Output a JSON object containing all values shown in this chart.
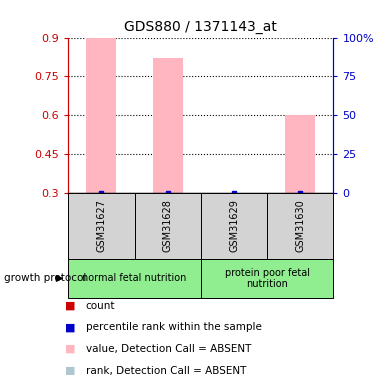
{
  "title": "GDS880 / 1371143_at",
  "samples": [
    "GSM31627",
    "GSM31628",
    "GSM31629",
    "GSM31630"
  ],
  "pink_bar_values": [
    0.9,
    0.82,
    null,
    0.6
  ],
  "blue_dot_values": [
    0.3,
    0.3,
    0.3,
    0.3
  ],
  "ylim": [
    0.3,
    0.9
  ],
  "yticks_left": [
    0.3,
    0.45,
    0.6,
    0.75,
    0.9
  ],
  "yticks_right": [
    0,
    25,
    50,
    75,
    100
  ],
  "yticks_right_labels": [
    "0",
    "25",
    "50",
    "75",
    "100%"
  ],
  "ybaseline": 0.3,
  "groups": [
    {
      "label": "normal fetal nutrition",
      "span": [
        0,
        1
      ],
      "color": "#90EE90"
    },
    {
      "label": "protein poor fetal\nnutrition",
      "span": [
        2,
        3
      ],
      "color": "#90EE90"
    }
  ],
  "group_protocol_label": "growth protocol",
  "sample_box_color": "#d3d3d3",
  "left_axis_color": "#cc0000",
  "right_axis_color": "#0000cc",
  "pink_bar_color": "#ffb6c1",
  "blue_dot_color": "#0000cc",
  "legend_items": [
    {
      "color": "#cc0000",
      "label": "count"
    },
    {
      "color": "#0000cc",
      "label": "percentile rank within the sample"
    },
    {
      "color": "#ffb6c1",
      "label": "value, Detection Call = ABSENT"
    },
    {
      "color": "#aec6cf",
      "label": "rank, Detection Call = ABSENT"
    }
  ]
}
